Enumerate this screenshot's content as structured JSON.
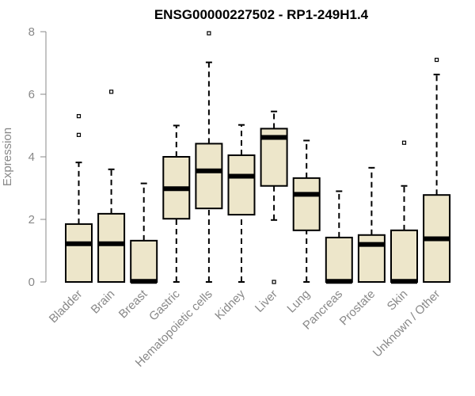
{
  "chart_data": {
    "type": "boxplot",
    "title": "ENSG00000227502 - RP1-249H1.4",
    "ylabel": "Expression",
    "ylim": [
      0,
      8
    ],
    "yticks": [
      0,
      2,
      4,
      6,
      8
    ],
    "categories": [
      "Bladder",
      "Brain",
      "Breast",
      "Gastric",
      "Hematopoietic cells",
      "Kidney",
      "Liver",
      "Lung",
      "Pancreas",
      "Prostate",
      "Skin",
      "Unknown / Other"
    ],
    "boxes": [
      {
        "whisker_low": 0.0,
        "q1": 0.0,
        "median": 1.22,
        "q3": 1.85,
        "whisker_high": 3.82,
        "outliers": [
          4.7,
          5.3
        ]
      },
      {
        "whisker_low": 0.0,
        "q1": 0.0,
        "median": 1.22,
        "q3": 2.18,
        "whisker_high": 3.6,
        "outliers": [
          6.08
        ]
      },
      {
        "whisker_low": 0.0,
        "q1": 0.0,
        "median": 0.02,
        "q3": 1.32,
        "whisker_high": 3.15,
        "outliers": []
      },
      {
        "whisker_low": 0.0,
        "q1": 2.02,
        "median": 2.98,
        "q3": 4.0,
        "whisker_high": 5.0,
        "outliers": []
      },
      {
        "whisker_low": 0.0,
        "q1": 2.35,
        "median": 3.55,
        "q3": 4.42,
        "whisker_high": 7.02,
        "outliers": [
          7.95
        ]
      },
      {
        "whisker_low": 0.0,
        "q1": 2.15,
        "median": 3.38,
        "q3": 4.05,
        "whisker_high": 5.02,
        "outliers": []
      },
      {
        "whisker_low": 1.98,
        "q1": 3.07,
        "median": 4.62,
        "q3": 4.9,
        "whisker_high": 5.45,
        "outliers": [
          0.0
        ]
      },
      {
        "whisker_low": 0.0,
        "q1": 1.65,
        "median": 2.8,
        "q3": 3.32,
        "whisker_high": 4.52,
        "outliers": []
      },
      {
        "whisker_low": 0.0,
        "q1": 0.0,
        "median": 0.02,
        "q3": 1.42,
        "whisker_high": 2.9,
        "outliers": []
      },
      {
        "whisker_low": 0.0,
        "q1": 0.0,
        "median": 1.2,
        "q3": 1.5,
        "whisker_high": 3.65,
        "outliers": []
      },
      {
        "whisker_low": 0.0,
        "q1": 0.0,
        "median": 0.02,
        "q3": 1.65,
        "whisker_high": 3.07,
        "outliers": [
          4.45
        ]
      },
      {
        "whisker_low": 0.0,
        "q1": 0.0,
        "median": 1.38,
        "q3": 2.78,
        "whisker_high": 6.63,
        "outliers": [
          7.1
        ]
      }
    ],
    "box_fill": "#ede6ca",
    "grid": false,
    "legend": "none"
  }
}
